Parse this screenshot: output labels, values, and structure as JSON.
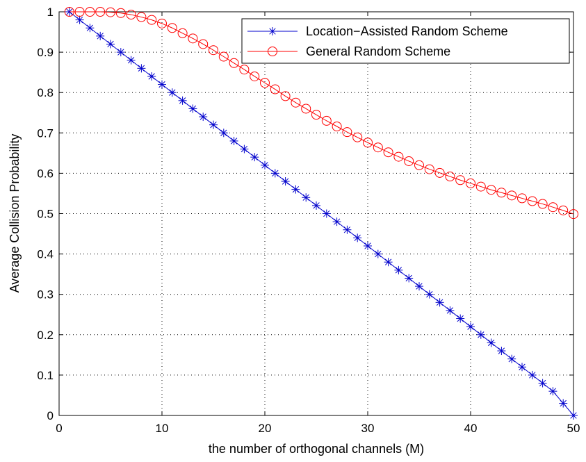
{
  "chart_data": {
    "type": "line",
    "title": "",
    "xlabel": "the number of orthogonal channels (M)",
    "ylabel": "Average Collision Probability",
    "xlim": [
      0,
      50
    ],
    "ylim": [
      0,
      1
    ],
    "xticks": [
      0,
      10,
      20,
      30,
      40,
      50
    ],
    "yticks": [
      0,
      0.1,
      0.2,
      0.3,
      0.4,
      0.5,
      0.6,
      0.7,
      0.8,
      0.9,
      1
    ],
    "grid": true,
    "legend_position": "top-right",
    "x": [
      1,
      2,
      3,
      4,
      5,
      6,
      7,
      8,
      9,
      10,
      11,
      12,
      13,
      14,
      15,
      16,
      17,
      18,
      19,
      20,
      21,
      22,
      23,
      24,
      25,
      26,
      27,
      28,
      29,
      30,
      31,
      32,
      33,
      34,
      35,
      36,
      37,
      38,
      39,
      40,
      41,
      42,
      43,
      44,
      45,
      46,
      47,
      48,
      49,
      50
    ],
    "series": [
      {
        "name": "Location−Assisted Random Scheme",
        "color": "#0000cc",
        "marker": "asterisk",
        "values": [
          1.0,
          0.98,
          0.96,
          0.94,
          0.92,
          0.9,
          0.88,
          0.86,
          0.84,
          0.82,
          0.8,
          0.78,
          0.76,
          0.74,
          0.72,
          0.7,
          0.68,
          0.66,
          0.64,
          0.62,
          0.6,
          0.58,
          0.56,
          0.54,
          0.52,
          0.5,
          0.48,
          0.46,
          0.44,
          0.42,
          0.4,
          0.38,
          0.36,
          0.34,
          0.32,
          0.3,
          0.28,
          0.26,
          0.24,
          0.22,
          0.2,
          0.18,
          0.16,
          0.14,
          0.12,
          0.1,
          0.08,
          0.06,
          0.03,
          0.0
        ]
      },
      {
        "name": "General Random Scheme",
        "color": "#ff0000",
        "marker": "circle",
        "values": [
          1.0,
          1.0,
          1.0,
          1.0,
          0.999,
          0.997,
          0.993,
          0.987,
          0.98,
          0.971,
          0.96,
          0.947,
          0.934,
          0.92,
          0.905,
          0.889,
          0.873,
          0.857,
          0.84,
          0.824,
          0.808,
          0.791,
          0.775,
          0.76,
          0.745,
          0.73,
          0.716,
          0.702,
          0.689,
          0.676,
          0.664,
          0.652,
          0.641,
          0.63,
          0.62,
          0.61,
          0.601,
          0.592,
          0.583,
          0.575,
          0.567,
          0.559,
          0.552,
          0.545,
          0.538,
          0.531,
          0.524,
          0.516,
          0.508,
          0.499
        ]
      }
    ]
  }
}
